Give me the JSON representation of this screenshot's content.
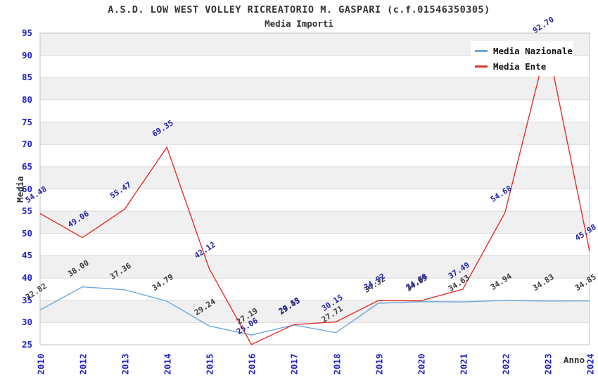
{
  "header": {
    "title": "A.S.D. LOW WEST VOLLEY RICREATORIO M. GASPARI (c.f.01546350305)",
    "subtitle": "Media Importi"
  },
  "axes": {
    "y_label": "Media",
    "x_label": "Anno"
  },
  "legend": {
    "items": [
      {
        "label": "Media Nazionale",
        "color": "#6fa8dc"
      },
      {
        "label": "Media Ente",
        "color": "#e3302e"
      }
    ]
  },
  "colors": {
    "tick_label": "#2222cc",
    "grid_line": "#d9d9d9",
    "plot_border": "#c3c3c3",
    "band_gray": "#f0f0f0",
    "band_white": "#ffffff",
    "title_text": "#333333"
  },
  "chart_data": {
    "type": "line",
    "title": "A.S.D. LOW WEST VOLLEY RICREATORIO M. GASPARI (c.f.01546350305)",
    "subtitle": "Media Importi",
    "xlabel": "Anno",
    "ylabel": "Media",
    "ylim": [
      25,
      95
    ],
    "ytick_step": 5,
    "grid": true,
    "band_fill": true,
    "legend_position": "top-right",
    "categories": [
      "2010",
      "2012",
      "2013",
      "2014",
      "2015",
      "2016",
      "2017",
      "2018",
      "2019",
      "2020",
      "2021",
      "2022",
      "2023",
      "2024"
    ],
    "series": [
      {
        "name": "Media Nazionale",
        "color": "#6fa8dc",
        "label_color": "#3c3c3c",
        "values": [
          32.82,
          38.0,
          37.36,
          34.79,
          29.24,
          27.19,
          29.45,
          27.71,
          34.32,
          34.69,
          34.63,
          34.94,
          34.83,
          34.85
        ],
        "labels": [
          "32.82",
          "38.00",
          "37.36",
          "34.79",
          "29.24",
          "27.19",
          "29.45",
          "27.71",
          "34.32",
          "34.69",
          "34.63",
          "34.94",
          "34.83",
          "34.85"
        ]
      },
      {
        "name": "Media Ente",
        "color": "#e3302e",
        "label_color": "#2424a8",
        "values": [
          54.48,
          49.06,
          55.47,
          69.35,
          42.12,
          25.06,
          29.53,
          30.15,
          34.92,
          34.88,
          37.49,
          54.68,
          92.7,
          45.98
        ],
        "labels": [
          "54.48",
          "49.06",
          "55.47",
          "69.35",
          "42.12",
          "25.06",
          "29.53",
          "30.15",
          "34.92",
          "34.88",
          "37.49",
          "54.68",
          "92.70",
          "45.98"
        ]
      }
    ]
  }
}
